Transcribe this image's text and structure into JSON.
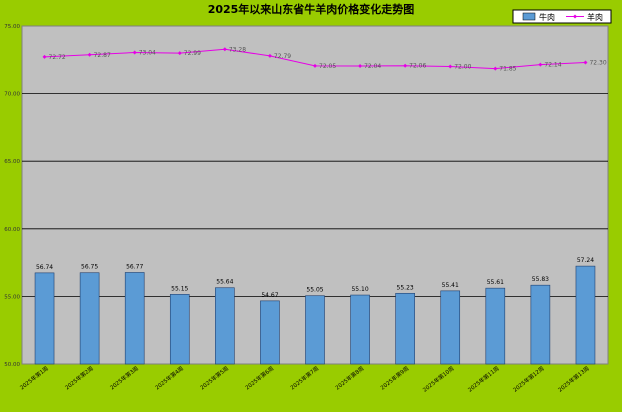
{
  "chart_data": {
    "type": "bar",
    "title": "2025年以来山东省牛羊肉价格变化走势图",
    "xlabel": "",
    "ylabel": "",
    "categories": [
      "2025年第1周",
      "2025年第2周",
      "2025年第3周",
      "2025年第4周",
      "2025年第5周",
      "2025年第6周",
      "2025年第7周",
      "2025年第8周",
      "2025年第9周",
      "2025年第10周",
      "2025年第11周",
      "2025年第12周",
      "2025年第13周"
    ],
    "ylim": [
      50,
      75
    ],
    "yticks": [
      50,
      55,
      60,
      65,
      70,
      75
    ],
    "ytick_labels": [
      "50.00",
      "55.00",
      "60.00",
      "65.00",
      "70.00",
      "75.00"
    ],
    "grid": true,
    "legend_position": "top-right",
    "series": [
      {
        "name": "牛肉",
        "type": "bar",
        "color": "#5b9bd5",
        "values": [
          56.74,
          56.75,
          56.77,
          55.15,
          55.64,
          54.67,
          55.05,
          55.1,
          55.23,
          55.41,
          55.61,
          55.83,
          57.24
        ],
        "labels": [
          "56.74",
          "56.75",
          "56.77",
          "55.15",
          "55.64",
          "54.67",
          "55.05",
          "55.10",
          "55.23",
          "55.41",
          "55.61",
          "55.83",
          "57.24"
        ]
      },
      {
        "name": "羊肉",
        "type": "line",
        "color": "#e600e6",
        "values": [
          72.72,
          72.87,
          73.04,
          72.99,
          73.28,
          72.79,
          72.05,
          72.04,
          72.06,
          72.0,
          71.85,
          72.14,
          72.3
        ],
        "labels": [
          "72.72",
          "72.87",
          "73.04",
          "72.99",
          "73.28",
          "72.79",
          "72.05",
          "72.04",
          "72.06",
          "72.00",
          "71.85",
          "72.14",
          "72.30"
        ]
      }
    ]
  },
  "colors": {
    "background": "#99cc00",
    "plot_area": "#c0c0c0",
    "gridline": "#000000"
  }
}
